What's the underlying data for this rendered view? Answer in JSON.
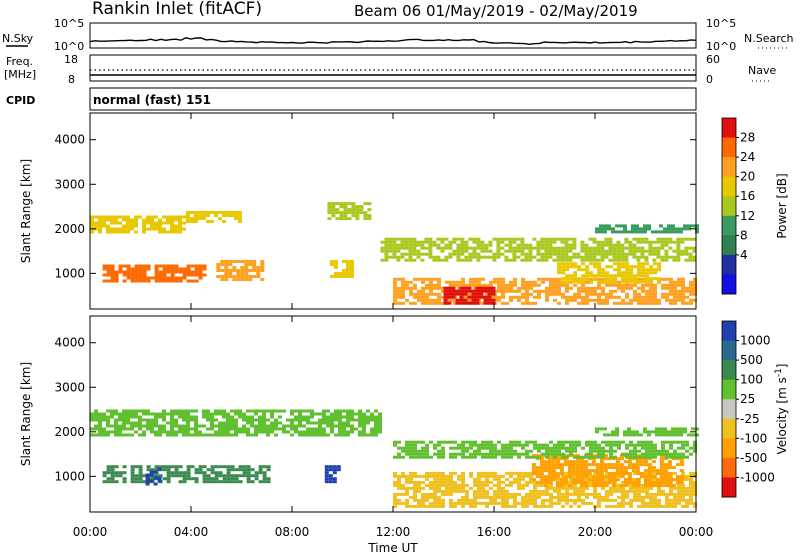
{
  "header": {
    "title": "Rankin Inlet (fitACF)",
    "beam_info": "Beam 06  01/May/2019 - 02/May/2019"
  },
  "panels": {
    "nsky": {
      "left_label": "N.Sky",
      "left_ticks": [
        "10^5",
        "10^0"
      ],
      "right_ticks": [
        "10^5",
        "10^0"
      ],
      "right_label": "N.Search"
    },
    "freq": {
      "left_label_lines": [
        "Freq.",
        "[MHz]"
      ],
      "left_ticks": [
        "18",
        "8"
      ],
      "right_ticks": [
        "60",
        "0"
      ],
      "right_label": "Nave"
    },
    "cpid": {
      "label": "CPID",
      "text": "normal (fast) 151"
    }
  },
  "chart_data": [
    {
      "type": "heatmap",
      "name": "Power",
      "ylabel": "Slant Range [km]",
      "yticks": [
        1000,
        2000,
        3000,
        4000
      ],
      "ylim": [
        200,
        4600
      ],
      "colorbar": {
        "label": "Power [dB]",
        "ticks": [
          "28",
          "24",
          "20",
          "16",
          "12",
          "8",
          "4"
        ],
        "colors": [
          "#e01010",
          "#ff6a00",
          "#ffa020",
          "#e8c800",
          "#a8c820",
          "#3a9a60",
          "#2f7f50",
          "#2030a0",
          "#1010e0"
        ]
      },
      "regions": [
        {
          "x": [
            0.0,
            3.8
          ],
          "y": [
            1900,
            2300
          ],
          "level": 17
        },
        {
          "x": [
            3.8,
            6.0
          ],
          "y": [
            2150,
            2400
          ],
          "level": 16
        },
        {
          "x": [
            9.4,
            11.0
          ],
          "y": [
            2200,
            2600
          ],
          "level": 14
        },
        {
          "x": [
            0.5,
            4.5
          ],
          "y": [
            800,
            1200
          ],
          "level": 24
        },
        {
          "x": [
            5.0,
            6.8
          ],
          "y": [
            850,
            1300
          ],
          "level": 20
        },
        {
          "x": [
            9.5,
            10.3
          ],
          "y": [
            900,
            1300
          ],
          "level": 16
        },
        {
          "x": [
            12.0,
            24.0
          ],
          "y": [
            300,
            900
          ],
          "level": 22
        },
        {
          "x": [
            14.0,
            16.0
          ],
          "y": [
            300,
            700
          ],
          "level": 28
        },
        {
          "x": [
            11.5,
            24.0
          ],
          "y": [
            1300,
            1800
          ],
          "level": 12
        },
        {
          "x": [
            18.5,
            22.5
          ],
          "y": [
            800,
            1250
          ],
          "level": 18
        },
        {
          "x": [
            20.0,
            24.0
          ],
          "y": [
            1900,
            2100
          ],
          "level": 10
        }
      ]
    },
    {
      "type": "heatmap",
      "name": "Velocity",
      "ylabel": "Slant Range [km]",
      "yticks": [
        1000,
        2000,
        3000,
        4000
      ],
      "ylim": [
        200,
        4600
      ],
      "xlabel": "Time UT",
      "xticks": [
        "00:00",
        "04:00",
        "08:00",
        "12:00",
        "16:00",
        "20:00",
        "00:00"
      ],
      "xlim": [
        0,
        24
      ],
      "colorbar": {
        "label": "Velocity [m s^-1]",
        "ticks": [
          "1000",
          "500",
          "100",
          "25",
          "-25",
          "-100",
          "-500",
          "-1000"
        ],
        "colors": [
          "#2040b0",
          "#2a6a90",
          "#3a8a50",
          "#60c030",
          "#c8c8c0",
          "#f0c020",
          "#ffa000",
          "#ff6a10",
          "#e01010"
        ]
      },
      "regions": [
        {
          "x": [
            0.0,
            11.5
          ],
          "y": [
            1900,
            2500
          ],
          "level": 25
        },
        {
          "x": [
            0.5,
            7.0
          ],
          "y": [
            850,
            1250
          ],
          "level": 100
        },
        {
          "x": [
            2.2,
            2.8
          ],
          "y": [
            850,
            1200
          ],
          "level": 1000
        },
        {
          "x": [
            9.3,
            9.8
          ],
          "y": [
            900,
            1250
          ],
          "level": 1000
        },
        {
          "x": [
            12.0,
            24.0
          ],
          "y": [
            300,
            1100
          ],
          "level": -100
        },
        {
          "x": [
            17.5,
            23.5
          ],
          "y": [
            800,
            1500
          ],
          "level": -500
        },
        {
          "x": [
            12.0,
            24.0
          ],
          "y": [
            1400,
            1800
          ],
          "level": 25
        },
        {
          "x": [
            20.0,
            24.0
          ],
          "y": [
            1900,
            2100
          ],
          "level": 25
        }
      ]
    }
  ]
}
